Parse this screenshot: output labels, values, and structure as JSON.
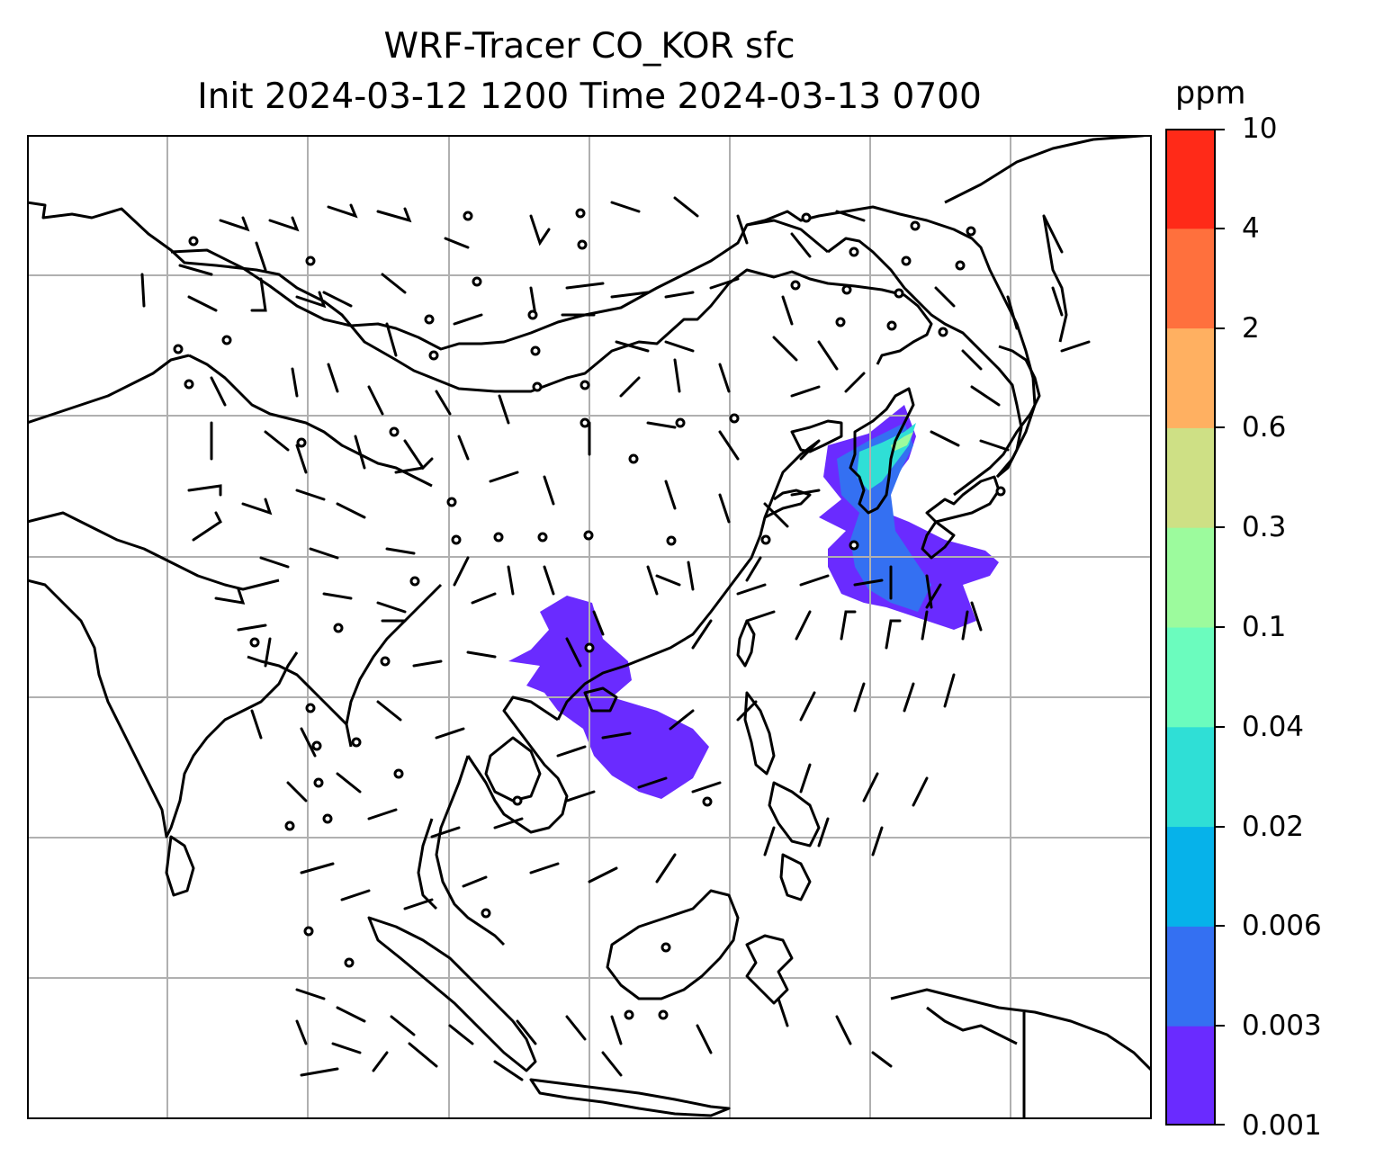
{
  "title": {
    "line1": "WRF-Tracer CO_KOR sfc",
    "line2": "Init 2024-03-12 1200 Time 2024-03-13 0700"
  },
  "colorbar": {
    "unit": "ppm",
    "levels": [
      "0.001",
      "0.003",
      "0.006",
      "0.02",
      "0.04",
      "0.1",
      "0.3",
      "0.6",
      "2",
      "4",
      "10"
    ],
    "colors": [
      "#6a2bff",
      "#3470f2",
      "#06b2ea",
      "#2fdfd6",
      "#6bfcbe",
      "#9cfb9d",
      "#cee085",
      "#ffb061",
      "#ff703d",
      "#ff2a18"
    ]
  },
  "map": {
    "projection_grid": "lat-lon gridlines",
    "gridline_color": "#b0b0b0",
    "coastline_color": "#000000",
    "wind_barb_color": "#000000",
    "plumes": [
      {
        "region": "Korea / Yellow Sea",
        "max_level": "0.04-0.1"
      },
      {
        "region": "Indochina / South China",
        "max_level": "0.001-0.003"
      }
    ]
  }
}
